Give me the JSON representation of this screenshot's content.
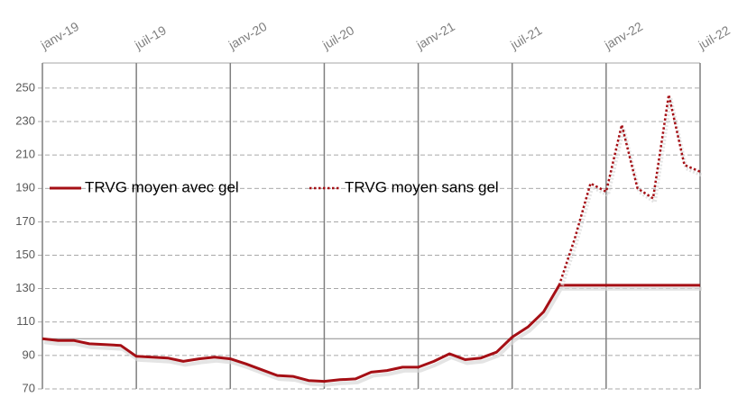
{
  "chart_data": {
    "type": "line",
    "x": [
      "2019-01",
      "2019-02",
      "2019-03",
      "2019-04",
      "2019-05",
      "2019-06",
      "2019-07",
      "2019-08",
      "2019-09",
      "2019-10",
      "2019-11",
      "2019-12",
      "2020-01",
      "2020-02",
      "2020-03",
      "2020-04",
      "2020-05",
      "2020-06",
      "2020-07",
      "2020-08",
      "2020-09",
      "2020-10",
      "2020-11",
      "2020-12",
      "2021-01",
      "2021-02",
      "2021-03",
      "2021-04",
      "2021-05",
      "2021-06",
      "2021-07",
      "2021-08",
      "2021-09",
      "2021-10",
      "2021-11",
      "2021-12",
      "2022-01",
      "2022-02",
      "2022-03",
      "2022-04",
      "2022-05",
      "2022-06",
      "2022-07"
    ],
    "series": [
      {
        "name": "TRVG moyen avec gel",
        "color": "#a50f15",
        "style": "solid",
        "values": [
          100,
          99,
          99,
          97,
          96.5,
          96,
          89.5,
          89,
          88.5,
          86.5,
          88,
          89,
          88,
          85,
          81.5,
          78,
          77.5,
          75,
          74.5,
          75.5,
          76,
          80,
          81,
          83,
          83,
          86.5,
          91,
          87.5,
          88.5,
          92,
          101,
          107,
          116,
          132,
          132,
          132,
          132,
          132,
          132,
          132,
          132,
          132,
          132
        ]
      },
      {
        "name": "TRVG moyen sans gel",
        "color": "#a50f15",
        "style": "dotted",
        "values": [
          null,
          null,
          null,
          null,
          null,
          null,
          null,
          null,
          null,
          null,
          null,
          null,
          null,
          null,
          null,
          null,
          null,
          null,
          null,
          null,
          null,
          null,
          null,
          null,
          null,
          null,
          null,
          null,
          null,
          null,
          null,
          null,
          null,
          132,
          160,
          193,
          188,
          228,
          190,
          184,
          246,
          204,
          200
        ]
      }
    ],
    "xticks": [
      {
        "value": "2019-01",
        "label": "janv-19"
      },
      {
        "value": "2019-07",
        "label": "juil-19"
      },
      {
        "value": "2020-01",
        "label": "janv-20"
      },
      {
        "value": "2020-07",
        "label": "juil-20"
      },
      {
        "value": "2021-01",
        "label": "janv-21"
      },
      {
        "value": "2021-07",
        "label": "juil-21"
      },
      {
        "value": "2022-01",
        "label": "janv-22"
      },
      {
        "value": "2022-07",
        "label": "juil-22"
      }
    ],
    "ylim": [
      70,
      265
    ],
    "yticks": [
      70,
      90,
      110,
      130,
      150,
      170,
      190,
      210,
      230,
      250
    ],
    "reference_line": 100,
    "grid": true
  }
}
